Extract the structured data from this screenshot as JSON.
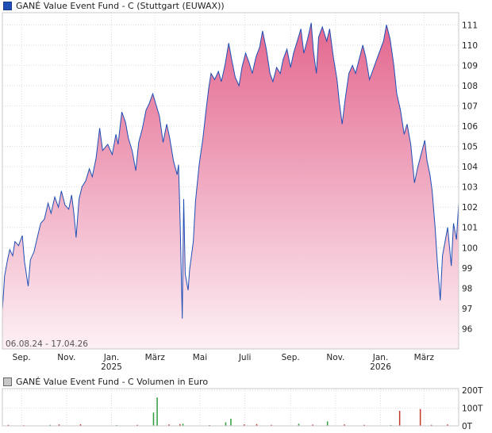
{
  "chart_data": [
    {
      "type": "area",
      "title": "GANÉ Value Event Fund - C (Stuttgart (EUWAX))",
      "date_range_label": "06.08.24 - 17.04.26",
      "x_start": "2024-08-06",
      "x_end": "2026-04-17",
      "x_ticks": [
        {
          "date": "2024-09-01",
          "label": "Sep.",
          "year": ""
        },
        {
          "date": "2024-11-01",
          "label": "Nov.",
          "year": ""
        },
        {
          "date": "2025-01-01",
          "label": "Jan.",
          "year": "2025"
        },
        {
          "date": "2025-03-01",
          "label": "März",
          "year": ""
        },
        {
          "date": "2025-05-01",
          "label": "Mai",
          "year": ""
        },
        {
          "date": "2025-07-01",
          "label": "Juli",
          "year": ""
        },
        {
          "date": "2025-09-01",
          "label": "Sep.",
          "year": ""
        },
        {
          "date": "2025-11-01",
          "label": "Nov.",
          "year": ""
        },
        {
          "date": "2026-01-01",
          "label": "Jan.",
          "year": "2026"
        },
        {
          "date": "2026-03-01",
          "label": "März",
          "year": ""
        }
      ],
      "y_ticks": [
        96,
        97,
        98,
        99,
        100,
        101,
        102,
        103,
        104,
        105,
        106,
        107,
        108,
        109,
        110,
        111
      ],
      "ylim": [
        95,
        111.6
      ],
      "grid": true,
      "line_color": "#1f4fb5",
      "fill_top_color": "#e3678f",
      "fill_bottom_color": "#fdf0f4",
      "series": [
        {
          "values": [
            [
              "2024-08-06",
              96.9
            ],
            [
              "2024-08-09",
              98.6
            ],
            [
              "2024-08-13",
              99.4
            ],
            [
              "2024-08-16",
              99.9
            ],
            [
              "2024-08-20",
              99.6
            ],
            [
              "2024-08-23",
              100.3
            ],
            [
              "2024-08-28",
              100.1
            ],
            [
              "2024-09-02",
              100.6
            ],
            [
              "2024-09-05",
              99.3
            ],
            [
              "2024-09-10",
              98.1
            ],
            [
              "2024-09-13",
              99.4
            ],
            [
              "2024-09-18",
              99.8
            ],
            [
              "2024-09-23",
              100.6
            ],
            [
              "2024-09-27",
              101.2
            ],
            [
              "2024-10-02",
              101.4
            ],
            [
              "2024-10-07",
              102.2
            ],
            [
              "2024-10-11",
              101.7
            ],
            [
              "2024-10-16",
              102.5
            ],
            [
              "2024-10-21",
              102.0
            ],
            [
              "2024-10-25",
              102.8
            ],
            [
              "2024-10-30",
              102.1
            ],
            [
              "2024-11-04",
              101.9
            ],
            [
              "2024-11-08",
              102.6
            ],
            [
              "2024-11-11",
              101.7
            ],
            [
              "2024-11-14",
              100.5
            ],
            [
              "2024-11-18",
              102.4
            ],
            [
              "2024-11-22",
              103.0
            ],
            [
              "2024-11-27",
              103.3
            ],
            [
              "2024-12-02",
              103.9
            ],
            [
              "2024-12-06",
              103.5
            ],
            [
              "2024-12-11",
              104.4
            ],
            [
              "2024-12-16",
              105.9
            ],
            [
              "2024-12-20",
              104.8
            ],
            [
              "2024-12-27",
              105.1
            ],
            [
              "2025-01-02",
              104.6
            ],
            [
              "2025-01-07",
              105.6
            ],
            [
              "2025-01-10",
              105.1
            ],
            [
              "2025-01-15",
              106.7
            ],
            [
              "2025-01-20",
              106.2
            ],
            [
              "2025-01-24",
              105.4
            ],
            [
              "2025-01-29",
              104.8
            ],
            [
              "2025-02-03",
              103.8
            ],
            [
              "2025-02-07",
              105.2
            ],
            [
              "2025-02-12",
              105.9
            ],
            [
              "2025-02-17",
              106.8
            ],
            [
              "2025-02-21",
              107.1
            ],
            [
              "2025-02-26",
              107.6
            ],
            [
              "2025-03-03",
              107.0
            ],
            [
              "2025-03-07",
              106.5
            ],
            [
              "2025-03-12",
              105.2
            ],
            [
              "2025-03-17",
              106.1
            ],
            [
              "2025-03-21",
              105.4
            ],
            [
              "2025-03-26",
              104.3
            ],
            [
              "2025-03-31",
              103.6
            ],
            [
              "2025-04-02",
              104.1
            ],
            [
              "2025-04-04",
              101.4
            ],
            [
              "2025-04-07",
              96.5
            ],
            [
              "2025-04-08",
              99.6
            ],
            [
              "2025-04-09",
              102.4
            ],
            [
              "2025-04-11",
              98.7
            ],
            [
              "2025-04-15",
              97.9
            ],
            [
              "2025-04-17",
              98.9
            ],
            [
              "2025-04-22",
              100.3
            ],
            [
              "2025-04-25",
              102.3
            ],
            [
              "2025-04-30",
              104.1
            ],
            [
              "2025-05-05",
              105.4
            ],
            [
              "2025-05-09",
              106.7
            ],
            [
              "2025-05-13",
              107.9
            ],
            [
              "2025-05-16",
              108.6
            ],
            [
              "2025-05-21",
              108.3
            ],
            [
              "2025-05-26",
              108.7
            ],
            [
              "2025-05-30",
              108.2
            ],
            [
              "2025-06-04",
              109.0
            ],
            [
              "2025-06-09",
              110.1
            ],
            [
              "2025-06-13",
              109.3
            ],
            [
              "2025-06-18",
              108.4
            ],
            [
              "2025-06-23",
              108.0
            ],
            [
              "2025-06-27",
              108.9
            ],
            [
              "2025-07-02",
              109.6
            ],
            [
              "2025-07-07",
              109.1
            ],
            [
              "2025-07-11",
              108.6
            ],
            [
              "2025-07-16",
              109.4
            ],
            [
              "2025-07-21",
              109.9
            ],
            [
              "2025-07-25",
              110.7
            ],
            [
              "2025-07-30",
              109.8
            ],
            [
              "2025-08-04",
              108.6
            ],
            [
              "2025-08-08",
              108.2
            ],
            [
              "2025-08-13",
              108.9
            ],
            [
              "2025-08-18",
              108.6
            ],
            [
              "2025-08-22",
              109.3
            ],
            [
              "2025-08-27",
              109.8
            ],
            [
              "2025-09-01",
              108.9
            ],
            [
              "2025-09-05",
              109.6
            ],
            [
              "2025-09-10",
              110.2
            ],
            [
              "2025-09-15",
              110.8
            ],
            [
              "2025-09-19",
              109.6
            ],
            [
              "2025-09-24",
              110.3
            ],
            [
              "2025-09-29",
              111.1
            ],
            [
              "2025-10-02",
              109.7
            ],
            [
              "2025-10-06",
              108.6
            ],
            [
              "2025-10-09",
              110.4
            ],
            [
              "2025-10-14",
              110.9
            ],
            [
              "2025-10-20",
              110.2
            ],
            [
              "2025-10-24",
              110.8
            ],
            [
              "2025-10-29",
              109.4
            ],
            [
              "2025-11-03",
              108.3
            ],
            [
              "2025-11-06",
              107.2
            ],
            [
              "2025-11-10",
              106.1
            ],
            [
              "2025-11-14",
              107.3
            ],
            [
              "2025-11-19",
              108.6
            ],
            [
              "2025-11-24",
              109.0
            ],
            [
              "2025-11-28",
              108.6
            ],
            [
              "2025-12-03",
              109.3
            ],
            [
              "2025-12-08",
              110.0
            ],
            [
              "2025-12-12",
              109.4
            ],
            [
              "2025-12-17",
              108.3
            ],
            [
              "2025-12-22",
              108.8
            ],
            [
              "2025-12-29",
              109.5
            ],
            [
              "2026-01-05",
              110.2
            ],
            [
              "2026-01-09",
              111.0
            ],
            [
              "2026-01-14",
              110.3
            ],
            [
              "2026-01-19",
              109.0
            ],
            [
              "2026-01-23",
              107.6
            ],
            [
              "2026-01-28",
              106.8
            ],
            [
              "2026-02-02",
              105.6
            ],
            [
              "2026-02-06",
              106.1
            ],
            [
              "2026-02-11",
              105.1
            ],
            [
              "2026-02-16",
              103.2
            ],
            [
              "2026-02-20",
              103.9
            ],
            [
              "2026-02-25",
              104.6
            ],
            [
              "2026-03-02",
              105.3
            ],
            [
              "2026-03-05",
              104.3
            ],
            [
              "2026-03-09",
              103.6
            ],
            [
              "2026-03-12",
              102.8
            ],
            [
              "2026-03-16",
              101.0
            ],
            [
              "2026-03-19",
              99.3
            ],
            [
              "2026-03-23",
              97.4
            ],
            [
              "2026-03-26",
              99.6
            ],
            [
              "2026-03-30",
              100.4
            ],
            [
              "2026-04-02",
              101.0
            ],
            [
              "2026-04-07",
              99.1
            ],
            [
              "2026-04-10",
              101.2
            ],
            [
              "2026-04-14",
              100.4
            ],
            [
              "2026-04-17",
              102.2
            ]
          ]
        }
      ]
    },
    {
      "type": "bar",
      "title": "GANÉ Value Event Fund - C Volumen in Euro",
      "y_ticks": [
        {
          "value": 0,
          "label": "0T"
        },
        {
          "value": 100,
          "label": "100T"
        },
        {
          "value": 200,
          "label": "200T"
        }
      ],
      "ylim": [
        0,
        210
      ],
      "grid": true,
      "bars": [
        {
          "date": "2024-08-14",
          "value": 6,
          "color": "#c0392b"
        },
        {
          "date": "2024-09-04",
          "value": 4,
          "color": "#c0392b"
        },
        {
          "date": "2024-10-10",
          "value": 6,
          "color": "#2e9e3e"
        },
        {
          "date": "2024-10-22",
          "value": 8,
          "color": "#c0392b"
        },
        {
          "date": "2024-11-20",
          "value": 9,
          "color": "#c0392b"
        },
        {
          "date": "2025-01-08",
          "value": 5,
          "color": "#2e9e3e"
        },
        {
          "date": "2025-02-05",
          "value": 6,
          "color": "#c0392b"
        },
        {
          "date": "2025-02-27",
          "value": 75,
          "color": "#2e9e3e"
        },
        {
          "date": "2025-03-04",
          "value": 160,
          "color": "#2e9e3e"
        },
        {
          "date": "2025-03-20",
          "value": 8,
          "color": "#c0392b"
        },
        {
          "date": "2025-04-04",
          "value": 10,
          "color": "#c0392b"
        },
        {
          "date": "2025-04-08",
          "value": 12,
          "color": "#2e9e3e"
        },
        {
          "date": "2025-05-14",
          "value": 5,
          "color": "#c0392b"
        },
        {
          "date": "2025-06-05",
          "value": 20,
          "color": "#2e9e3e"
        },
        {
          "date": "2025-06-12",
          "value": 40,
          "color": "#2e9e3e"
        },
        {
          "date": "2025-06-30",
          "value": 8,
          "color": "#c0392b"
        },
        {
          "date": "2025-07-17",
          "value": 10,
          "color": "#c0392b"
        },
        {
          "date": "2025-08-06",
          "value": 6,
          "color": "#c0392b"
        },
        {
          "date": "2025-09-12",
          "value": 12,
          "color": "#2e9e3e"
        },
        {
          "date": "2025-10-01",
          "value": 7,
          "color": "#c0392b"
        },
        {
          "date": "2025-10-21",
          "value": 25,
          "color": "#2e9e3e"
        },
        {
          "date": "2025-11-13",
          "value": 8,
          "color": "#c0392b"
        },
        {
          "date": "2025-12-10",
          "value": 6,
          "color": "#c0392b"
        },
        {
          "date": "2026-01-15",
          "value": 5,
          "color": "#2e9e3e"
        },
        {
          "date": "2026-01-27",
          "value": 85,
          "color": "#c0392b"
        },
        {
          "date": "2026-02-24",
          "value": 95,
          "color": "#c0392b"
        },
        {
          "date": "2026-03-11",
          "value": 6,
          "color": "#c0392b"
        },
        {
          "date": "2026-04-02",
          "value": 8,
          "color": "#c0392b"
        }
      ]
    }
  ]
}
